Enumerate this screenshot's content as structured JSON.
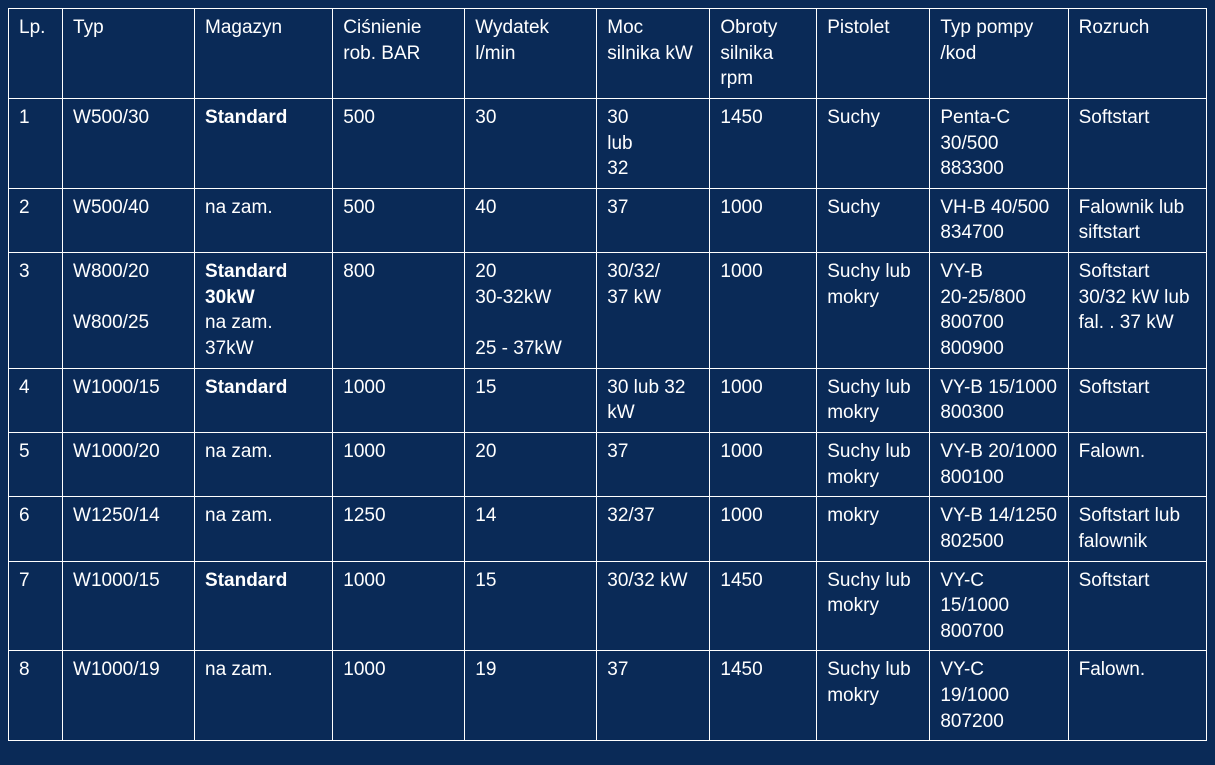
{
  "table": {
    "background_color": "#0a2a57",
    "border_color": "#ffffff",
    "text_color": "#ffffff",
    "font_size": 19,
    "columns": [
      {
        "key": "lp",
        "label": "Lp."
      },
      {
        "key": "typ",
        "label": "Typ"
      },
      {
        "key": "magazyn",
        "label": "Magazyn"
      },
      {
        "key": "cisnienie",
        "label": "Ciśnienie rob. BAR"
      },
      {
        "key": "wydatek",
        "label": "Wydatek l/min"
      },
      {
        "key": "moc",
        "label": "Moc silnika kW"
      },
      {
        "key": "obroty",
        "label": "Obroty silnika rpm"
      },
      {
        "key": "pistolet",
        "label": "Pistolet"
      },
      {
        "key": "pompa",
        "label": "Typ pompy /kod"
      },
      {
        "key": "rozruch",
        "label": "Rozruch"
      }
    ],
    "rows": [
      {
        "lp": "1",
        "typ": "W500/30",
        "magazyn_bold": "Standard",
        "magazyn_rest": "",
        "cisnienie": "500",
        "wydatek": "30",
        "moc": "30\nlub\n32",
        "obroty": "1450",
        "pistolet": "Suchy",
        "pompa": "Penta-C 30/500 883300",
        "rozruch": "Softstart"
      },
      {
        "lp": "2",
        "typ": "W500/40",
        "magazyn_bold": "",
        "magazyn_rest": "na zam.",
        "cisnienie": "500",
        "wydatek": "40",
        "moc": "37",
        "obroty": "1000",
        "pistolet": "Suchy",
        "pompa": "VH-B 40/500 834700",
        "rozruch": "Falownik lub siftstart"
      },
      {
        "lp": "3",
        "typ": "W800/20\n\nW800/25",
        "magazyn_bold": "Standard 30kW",
        "magazyn_rest": "na zam. 37kW",
        "cisnienie": "800",
        "wydatek": "20\n30-32kW\n\n25 - 37kW",
        "moc": "30/32/\n37 kW",
        "obroty": "1000",
        "pistolet": "Suchy lub mokry",
        "pompa": "VY-B\n20-25/800 800700 800900",
        "rozruch": "Softstart 30/32 kW lub  fal.  . 37 kW"
      },
      {
        "lp": "4",
        "typ": "W1000/15",
        "magazyn_bold": "Standard",
        "magazyn_rest": "",
        "cisnienie": "1000",
        "wydatek": "15",
        "moc": "30    lub 32\nkW",
        "obroty": "1000",
        "pistolet": "Suchy lub mokry",
        "pompa": "VY-B 15/1000 800300",
        "rozruch": "Softstart"
      },
      {
        "lp": "5",
        "typ": "W1000/20",
        "magazyn_bold": "",
        "magazyn_rest": "na zam.",
        "cisnienie": "1000",
        "wydatek": "20",
        "moc": "37",
        "obroty": "1000",
        "pistolet": "Suchy lub mokry",
        "pompa": "VY-B 20/1000 800100",
        "rozruch": "Falown."
      },
      {
        "lp": "6",
        "typ": "W1250/14",
        "magazyn_bold": "",
        "magazyn_rest": "na zam.",
        "cisnienie": "1250",
        "wydatek": "14",
        "moc": "32/37",
        "obroty": "1000",
        "pistolet": "mokry",
        "pompa": "VY-B 14/1250 802500",
        "rozruch": "Softstart lub falownik"
      },
      {
        "lp": "7",
        "typ": "W1000/15",
        "magazyn_bold": "Standard",
        "magazyn_rest": "",
        "cisnienie": "1000",
        "wydatek": "15",
        "moc": "30/32 kW",
        "obroty": "1450",
        "pistolet": "Suchy lub mokry",
        "pompa": "VY-C 15/1000 800700",
        "rozruch": "Softstart"
      },
      {
        "lp": "8",
        "typ": "W1000/19",
        "magazyn_bold": "",
        "magazyn_rest": "na zam.",
        "cisnienie": "1000",
        "wydatek": "19",
        "moc": "37",
        "obroty": "1450",
        "pistolet": "Suchy lub mokry",
        "pompa": "VY-C 19/1000 807200",
        "rozruch": "Falown."
      }
    ]
  }
}
